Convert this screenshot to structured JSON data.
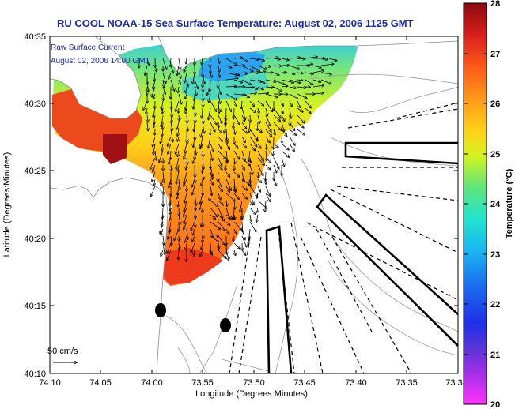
{
  "title": "RU COOL  NOAA-15  Sea Surface Temperature:  August 02, 2006 1125 GMT",
  "legend": {
    "line1": "Raw Surface Current",
    "line2": "August 02, 2006 14:00 GMT"
  },
  "scale_label": "50 cm/s",
  "x_axis": {
    "label": "Longitude (Degrees:Minutes)",
    "ticks": [
      "74:10",
      "74:05",
      "74:00",
      "73:55",
      "73:50",
      "73:45",
      "73:40",
      "73:35",
      "73:3"
    ]
  },
  "y_axis": {
    "label": "Latitude (Degrees:Minutes)",
    "ticks": [
      "40:35",
      "40:30",
      "40:25",
      "40:20",
      "40:15",
      "40:10"
    ]
  },
  "colorbar": {
    "label": "Temperature (°C)",
    "ticks": [
      "28",
      "27",
      "26",
      "25",
      "24",
      "23",
      "22",
      "21",
      "20"
    ],
    "min": 20,
    "max": 28,
    "colors": [
      "#ff33ff",
      "#7a3dd6",
      "#1f2fe6",
      "#19a9f0",
      "#23e0d0",
      "#6fe36a",
      "#ecf51a",
      "#ff9a1a",
      "#e83a1c",
      "#8a0a10"
    ]
  },
  "colors": {
    "title": "#1a2aa8",
    "land": "#ffffff",
    "ocean_bg": "#ffffff",
    "contours": "#9a9a9a"
  }
}
